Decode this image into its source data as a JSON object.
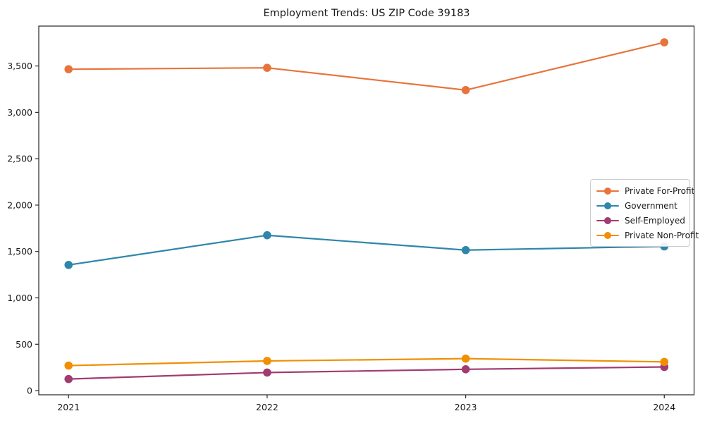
{
  "chart_data": {
    "type": "line",
    "title": "Employment Trends: US ZIP Code 39183",
    "xlabel": "",
    "ylabel": "",
    "x_labels": [
      "2021",
      "2022",
      "2023",
      "2024"
    ],
    "series": [
      {
        "name": "Private For-Profit",
        "color": "#E8743B",
        "values": [
          3465,
          3480,
          3240,
          3755
        ]
      },
      {
        "name": "Government",
        "color": "#2E86AB",
        "values": [
          1355,
          1675,
          1515,
          1555
        ]
      },
      {
        "name": "Self-Employed",
        "color": "#A23B72",
        "values": [
          125,
          195,
          230,
          255
        ]
      },
      {
        "name": "Private Non-Profit",
        "color": "#F18F01",
        "values": [
          270,
          320,
          345,
          310
        ]
      }
    ],
    "yticks": [
      0,
      500,
      1000,
      1500,
      2000,
      2500,
      3000,
      3500
    ],
    "ytick_labels": [
      "0",
      "500",
      "1,000",
      "1,500",
      "2,000",
      "2,500",
      "3,000",
      "3,500"
    ],
    "ylim": [
      -45,
      3930
    ],
    "grid": false,
    "legend_position": "center-right",
    "axis_color": "#262626",
    "tick_label_color": "#1a1a1a",
    "background_color": "#ffffff",
    "marker": "circle"
  }
}
